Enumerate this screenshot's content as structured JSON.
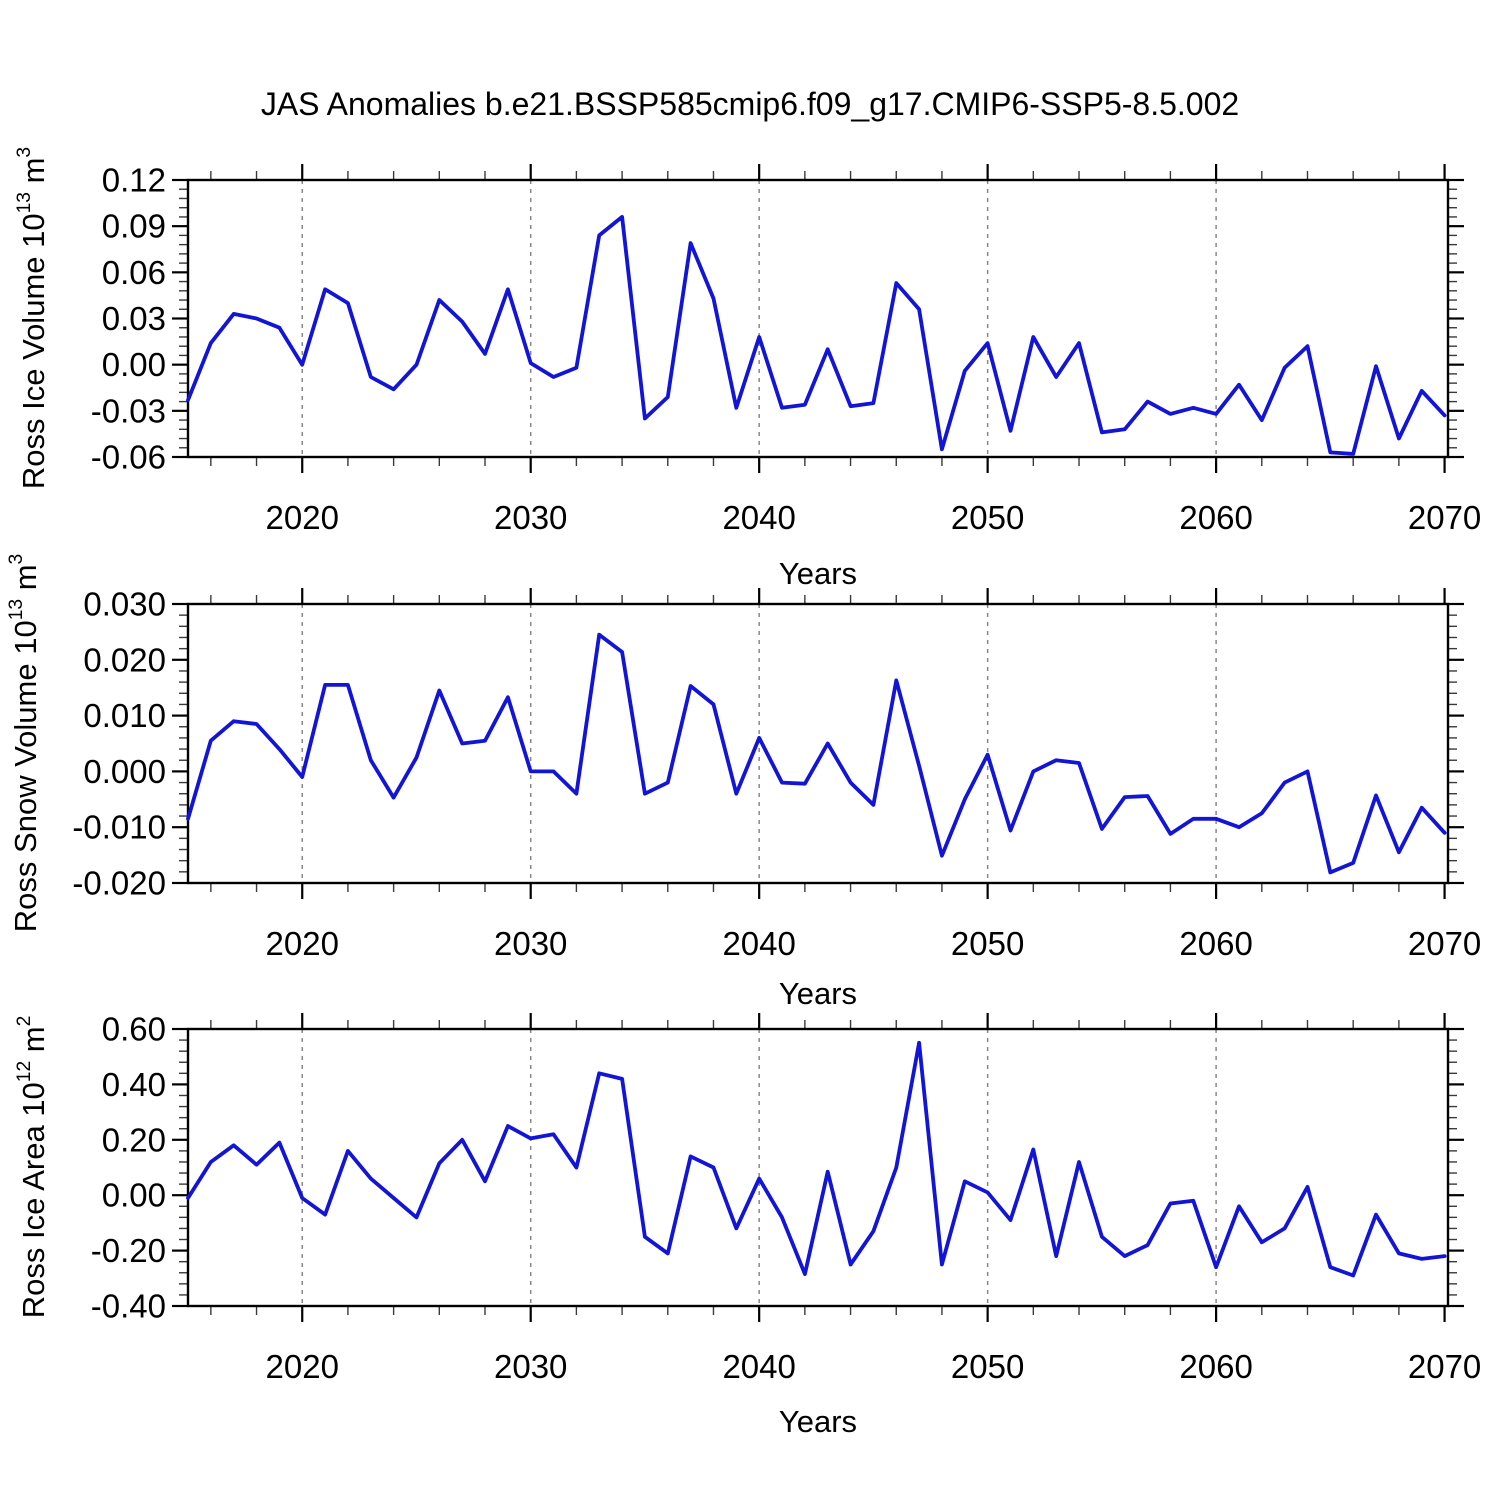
{
  "title": "JAS Anomalies b.e21.BSSP585cmip6.f09_g17.CMIP6-SSP5-8.5.002",
  "line_color": "#1214d6",
  "grid_color": "#888888",
  "axis_color": "#000000",
  "chart_data": [
    {
      "type": "line",
      "id": "ross-ice-volume",
      "ylabel": {
        "pre": "Ross Ice Volume 10",
        "sup1": "13",
        "mid": " m",
        "sup2": "3"
      },
      "xlabel": "Years",
      "ylim": [
        -0.06,
        0.12
      ],
      "y_tick_values": [
        0.12,
        0.09,
        0.06,
        0.03,
        0.0,
        -0.03,
        -0.06
      ],
      "y_tick_labels": [
        "0.12",
        "0.09",
        "0.06",
        "0.03",
        "0.00",
        "-0.03",
        "-0.06"
      ],
      "y_minors_per_interval": 4,
      "xlim": [
        2015,
        2070.15
      ],
      "x_tick_values": [
        2020,
        2030,
        2040,
        2050,
        2060,
        2070
      ],
      "x_tick_labels": [
        "2020",
        "2030",
        "2040",
        "2050",
        "2060",
        "2070"
      ],
      "x_minor_step": 2,
      "grid_x": [
        2020,
        2030,
        2040,
        2050,
        2060
      ],
      "x": [
        2015,
        2016,
        2017,
        2018,
        2019,
        2020,
        2021,
        2022,
        2023,
        2024,
        2025,
        2026,
        2027,
        2028,
        2029,
        2030,
        2031,
        2032,
        2033,
        2034,
        2035,
        2036,
        2037,
        2038,
        2039,
        2040,
        2041,
        2042,
        2043,
        2044,
        2045,
        2046,
        2047,
        2048,
        2049,
        2050,
        2051,
        2052,
        2053,
        2054,
        2055,
        2056,
        2057,
        2058,
        2059,
        2060,
        2061,
        2062,
        2063,
        2064,
        2065,
        2066,
        2067,
        2068,
        2069,
        2070
      ],
      "values": [
        -0.023,
        0.014,
        0.033,
        0.03,
        0.024,
        0.0,
        0.049,
        0.04,
        -0.008,
        -0.016,
        0.0,
        0.042,
        0.028,
        0.007,
        0.049,
        0.001,
        -0.008,
        -0.002,
        0.084,
        0.096,
        -0.035,
        -0.021,
        0.079,
        0.043,
        -0.028,
        0.018,
        -0.028,
        -0.026,
        0.01,
        -0.027,
        -0.025,
        0.053,
        0.036,
        -0.055,
        -0.004,
        0.014,
        -0.043,
        0.018,
        -0.008,
        0.014,
        -0.044,
        -0.042,
        -0.024,
        -0.032,
        -0.028,
        -0.032,
        -0.013,
        -0.036,
        -0.002,
        0.012,
        -0.057,
        -0.058,
        -0.001,
        -0.048,
        -0.017,
        -0.033
      ]
    },
    {
      "type": "line",
      "id": "ross-snow-volume",
      "ylabel": {
        "pre": "Ross Snow Volume 10",
        "sup1": "13",
        "mid": " m",
        "sup2": "3"
      },
      "xlabel": "Years",
      "ylim": [
        -0.02,
        0.03
      ],
      "y_tick_values": [
        0.03,
        0.02,
        0.01,
        0.0,
        -0.01,
        -0.02
      ],
      "y_tick_labels": [
        "0.030",
        "0.020",
        "0.010",
        "0.000",
        "-0.010",
        "-0.020"
      ],
      "y_minors_per_interval": 4,
      "xlim": [
        2015,
        2070.15
      ],
      "x_tick_values": [
        2020,
        2030,
        2040,
        2050,
        2060,
        2070
      ],
      "x_tick_labels": [
        "2020",
        "2030",
        "2040",
        "2050",
        "2060",
        "2070"
      ],
      "x_minor_step": 2,
      "grid_x": [
        2020,
        2030,
        2040,
        2050,
        2060
      ],
      "x": [
        2015,
        2016,
        2017,
        2018,
        2019,
        2020,
        2021,
        2022,
        2023,
        2024,
        2025,
        2026,
        2027,
        2028,
        2029,
        2030,
        2031,
        2032,
        2033,
        2034,
        2035,
        2036,
        2037,
        2038,
        2039,
        2040,
        2041,
        2042,
        2043,
        2044,
        2045,
        2046,
        2047,
        2048,
        2049,
        2050,
        2051,
        2052,
        2053,
        2054,
        2055,
        2056,
        2057,
        2058,
        2059,
        2060,
        2061,
        2062,
        2063,
        2064,
        2065,
        2066,
        2067,
        2068,
        2069,
        2070
      ],
      "values": [
        -0.0085,
        0.0055,
        0.009,
        0.0085,
        0.004,
        -0.001,
        0.0155,
        0.0155,
        0.002,
        -0.0047,
        0.0025,
        0.0145,
        0.005,
        0.0055,
        0.0133,
        0.0,
        0.0,
        -0.004,
        0.0245,
        0.0214,
        -0.004,
        -0.002,
        0.0153,
        0.012,
        -0.004,
        0.006,
        -0.002,
        -0.0022,
        0.005,
        -0.002,
        -0.006,
        0.0163,
        0.001,
        -0.0151,
        -0.005,
        0.003,
        -0.0106,
        0.0,
        0.002,
        0.0015,
        -0.0103,
        -0.0046,
        -0.0044,
        -0.0112,
        -0.0085,
        -0.0085,
        -0.01,
        -0.0075,
        -0.002,
        0.0,
        -0.0181,
        -0.0164,
        -0.0043,
        -0.0145,
        -0.0065,
        -0.011
      ]
    },
    {
      "type": "line",
      "id": "ross-ice-area",
      "ylabel": {
        "pre": "Ross Ice Area 10",
        "sup1": "12",
        "mid": " m",
        "sup2": "2"
      },
      "xlabel": "Years",
      "ylim": [
        -0.4,
        0.6
      ],
      "y_tick_values": [
        0.6,
        0.4,
        0.2,
        0.0,
        -0.2,
        -0.4
      ],
      "y_tick_labels": [
        "0.60",
        "0.40",
        "0.20",
        "0.00",
        "-0.20",
        "-0.40"
      ],
      "y_minors_per_interval": 4,
      "xlim": [
        2015,
        2070.15
      ],
      "x_tick_values": [
        2020,
        2030,
        2040,
        2050,
        2060,
        2070
      ],
      "x_tick_labels": [
        "2020",
        "2030",
        "2040",
        "2050",
        "2060",
        "2070"
      ],
      "x_minor_step": 2,
      "grid_x": [
        2020,
        2030,
        2040,
        2050,
        2060
      ],
      "x": [
        2015,
        2016,
        2017,
        2018,
        2019,
        2020,
        2021,
        2022,
        2023,
        2024,
        2025,
        2026,
        2027,
        2028,
        2029,
        2030,
        2031,
        2032,
        2033,
        2034,
        2035,
        2036,
        2037,
        2038,
        2039,
        2040,
        2041,
        2042,
        2043,
        2044,
        2045,
        2046,
        2047,
        2048,
        2049,
        2050,
        2051,
        2052,
        2053,
        2054,
        2055,
        2056,
        2057,
        2058,
        2059,
        2060,
        2061,
        2062,
        2063,
        2064,
        2065,
        2066,
        2067,
        2068,
        2069,
        2070
      ],
      "values": [
        -0.01,
        0.12,
        0.18,
        0.11,
        0.19,
        -0.01,
        -0.07,
        0.16,
        0.06,
        -0.01,
        -0.08,
        0.115,
        0.2,
        0.05,
        0.25,
        0.205,
        0.22,
        0.1,
        0.44,
        0.42,
        -0.15,
        -0.21,
        0.14,
        0.1,
        -0.12,
        0.06,
        -0.08,
        -0.285,
        0.085,
        -0.25,
        -0.13,
        0.1,
        0.55,
        -0.25,
        0.05,
        0.01,
        -0.09,
        0.165,
        -0.22,
        0.12,
        -0.15,
        -0.22,
        -0.18,
        -0.03,
        -0.02,
        -0.26,
        -0.04,
        -0.17,
        -0.12,
        0.03,
        -0.26,
        -0.29,
        -0.07,
        -0.21,
        -0.23,
        -0.22
      ]
    }
  ]
}
